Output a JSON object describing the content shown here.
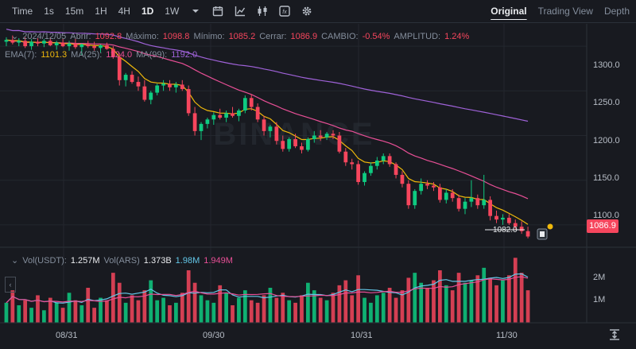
{
  "toolbar": {
    "intervals": [
      {
        "label": "Time",
        "active": false
      },
      {
        "label": "1s",
        "active": false
      },
      {
        "label": "15m",
        "active": false
      },
      {
        "label": "1H",
        "active": false
      },
      {
        "label": "4H",
        "active": false
      },
      {
        "label": "1D",
        "active": true
      },
      {
        "label": "1W",
        "active": false
      }
    ],
    "icons": [
      "chevron-down-icon",
      "calendar-icon",
      "indicator-icon",
      "candle-type-icon",
      "fx-icon",
      "gear-icon"
    ],
    "views": [
      {
        "label": "Original",
        "active": true
      },
      {
        "label": "Trading View",
        "active": false
      },
      {
        "label": "Depth",
        "active": false
      }
    ]
  },
  "ohlc": {
    "date": "2024/12/05",
    "open_label": "Abrir:",
    "open": "1092.8",
    "high_label": "Máximo:",
    "high": "1098.8",
    "low_label": "Mínimo:",
    "low": "1085.2",
    "close_label": "Cerrar:",
    "close": "1086.9",
    "change_label": "CAMBIO:",
    "change": "-0.54%",
    "amp_label": "AMPLITUD:",
    "amp": "1.24%"
  },
  "ma": {
    "ema_label": "EMA(7):",
    "ema_value": "1101.3",
    "ma25_label": "MA(25):",
    "ma25_value": "1124.0",
    "ma99_label": "MA(99):",
    "ma99_value": "1192.0",
    "colors": {
      "ema": "#f0b90b",
      "ma25": "#e84f96",
      "ma99": "#9f62d8"
    }
  },
  "price_axis": {
    "ticks": [
      "1300.0",
      "1250.0",
      "1200.0",
      "1150.0",
      "1100.0"
    ],
    "last_price": "1086.9",
    "low_marker": "1082.0"
  },
  "volume": {
    "label1": "Vol(USDT):",
    "value1": "1.257M",
    "label2": "Vol(ARS)",
    "value2": "1.373B",
    "value3": "1.98M",
    "value4": "1.949M",
    "ticks": [
      "2M",
      "1M"
    ]
  },
  "x_axis": {
    "dates": [
      "08/31",
      "09/30",
      "10/31",
      "11/30"
    ]
  },
  "watermark": "BINANCE",
  "colors": {
    "up": "#0ecb81",
    "down": "#f6465d",
    "bg": "#181a20",
    "grid": "#2b3139"
  },
  "chart_data": {
    "type": "candlestick",
    "interval": "1D",
    "ylim": [
      1075,
      1325
    ],
    "xlabels": [
      "08/31",
      "09/30",
      "10/31",
      "11/30"
    ],
    "candles": [
      [
        1305,
        1310,
        1300,
        1307
      ],
      [
        1307,
        1312,
        1302,
        1304
      ],
      [
        1304,
        1309,
        1300,
        1306
      ],
      [
        1306,
        1310,
        1298,
        1300
      ],
      [
        1300,
        1308,
        1296,
        1305
      ],
      [
        1305,
        1309,
        1300,
        1303
      ],
      [
        1303,
        1308,
        1299,
        1306
      ],
      [
        1306,
        1310,
        1300,
        1301
      ],
      [
        1301,
        1306,
        1296,
        1304
      ],
      [
        1304,
        1308,
        1299,
        1300
      ],
      [
        1300,
        1306,
        1295,
        1303
      ],
      [
        1303,
        1308,
        1297,
        1299
      ],
      [
        1299,
        1303,
        1290,
        1302
      ],
      [
        1302,
        1306,
        1298,
        1300
      ],
      [
        1300,
        1305,
        1295,
        1298
      ],
      [
        1298,
        1302,
        1293,
        1301
      ],
      [
        1301,
        1304,
        1296,
        1297
      ],
      [
        1297,
        1300,
        1286,
        1288
      ],
      [
        1288,
        1292,
        1256,
        1262
      ],
      [
        1262,
        1270,
        1255,
        1268
      ],
      [
        1268,
        1272,
        1258,
        1260
      ],
      [
        1260,
        1266,
        1250,
        1255
      ],
      [
        1255,
        1262,
        1238,
        1240
      ],
      [
        1240,
        1250,
        1235,
        1248
      ],
      [
        1248,
        1258,
        1245,
        1256
      ],
      [
        1256,
        1262,
        1250,
        1258
      ],
      [
        1258,
        1262,
        1250,
        1254
      ],
      [
        1254,
        1260,
        1248,
        1257
      ],
      [
        1257,
        1262,
        1250,
        1252
      ],
      [
        1252,
        1256,
        1222,
        1225
      ],
      [
        1225,
        1232,
        1200,
        1205
      ],
      [
        1205,
        1215,
        1195,
        1213
      ],
      [
        1213,
        1220,
        1208,
        1218
      ],
      [
        1218,
        1226,
        1212,
        1223
      ],
      [
        1223,
        1230,
        1218,
        1220
      ],
      [
        1220,
        1228,
        1215,
        1225
      ],
      [
        1225,
        1232,
        1220,
        1222
      ],
      [
        1222,
        1230,
        1216,
        1228
      ],
      [
        1228,
        1245,
        1225,
        1242
      ],
      [
        1242,
        1246,
        1228,
        1232
      ],
      [
        1232,
        1236,
        1215,
        1218
      ],
      [
        1218,
        1222,
        1200,
        1205
      ],
      [
        1205,
        1212,
        1198,
        1210
      ],
      [
        1210,
        1215,
        1190,
        1194
      ],
      [
        1194,
        1200,
        1182,
        1185
      ],
      [
        1185,
        1198,
        1182,
        1196
      ],
      [
        1196,
        1202,
        1186,
        1188
      ],
      [
        1188,
        1192,
        1180,
        1184
      ],
      [
        1184,
        1198,
        1182,
        1196
      ],
      [
        1196,
        1205,
        1192,
        1200
      ],
      [
        1200,
        1206,
        1194,
        1198
      ],
      [
        1198,
        1204,
        1195,
        1202
      ],
      [
        1202,
        1206,
        1196,
        1200
      ],
      [
        1200,
        1204,
        1180,
        1182
      ],
      [
        1182,
        1186,
        1166,
        1170
      ],
      [
        1170,
        1174,
        1162,
        1168
      ],
      [
        1168,
        1172,
        1145,
        1148
      ],
      [
        1148,
        1160,
        1144,
        1158
      ],
      [
        1158,
        1170,
        1155,
        1166
      ],
      [
        1166,
        1176,
        1162,
        1172
      ],
      [
        1172,
        1180,
        1168,
        1177
      ],
      [
        1177,
        1180,
        1165,
        1168
      ],
      [
        1168,
        1170,
        1152,
        1156
      ],
      [
        1156,
        1160,
        1142,
        1146
      ],
      [
        1146,
        1150,
        1118,
        1122
      ],
      [
        1122,
        1140,
        1118,
        1138
      ],
      [
        1138,
        1152,
        1134,
        1146
      ],
      [
        1146,
        1150,
        1140,
        1144
      ],
      [
        1144,
        1148,
        1138,
        1142
      ],
      [
        1142,
        1146,
        1125,
        1128
      ],
      [
        1128,
        1140,
        1124,
        1136
      ],
      [
        1136,
        1140,
        1126,
        1130
      ],
      [
        1130,
        1134,
        1115,
        1118
      ],
      [
        1118,
        1130,
        1112,
        1126
      ],
      [
        1126,
        1150,
        1120,
        1130
      ],
      [
        1130,
        1134,
        1118,
        1122
      ],
      [
        1122,
        1156,
        1118,
        1128
      ],
      [
        1128,
        1132,
        1105,
        1110
      ],
      [
        1110,
        1116,
        1102,
        1106
      ],
      [
        1106,
        1112,
        1100,
        1108
      ],
      [
        1108,
        1112,
        1100,
        1102
      ],
      [
        1102,
        1106,
        1095,
        1098
      ],
      [
        1098,
        1104,
        1090,
        1093
      ],
      [
        1093,
        1098,
        1085,
        1087
      ]
    ],
    "volumes": [
      0.8,
      1.3,
      0.7,
      0.9,
      0.6,
      1.1,
      0.5,
      1.0,
      0.8,
      0.6,
      1.2,
      0.9,
      0.7,
      1.4,
      0.6,
      1.0,
      0.9,
      2.0,
      1.6,
      0.8,
      1.1,
      0.9,
      1.3,
      1.7,
      0.9,
      1.0,
      0.7,
      0.8,
      1.2,
      2.1,
      1.6,
      1.1,
      0.9,
      0.8,
      1.5,
      1.2,
      0.7,
      1.0,
      1.3,
      0.9,
      0.8,
      1.1,
      1.4,
      1.0,
      1.2,
      0.9,
      0.8,
      1.1,
      1.6,
      1.3,
      1.0,
      0.9,
      1.2,
      1.5,
      1.7,
      1.1,
      1.9,
      1.0,
      0.8,
      1.1,
      1.2,
      1.4,
      1.0,
      1.3,
      1.8,
      2.0,
      1.6,
      1.4,
      1.7,
      2.1,
      1.5,
      1.3,
      2.0,
      1.6,
      1.7,
      1.9,
      2.2,
      1.8,
      1.5,
      1.7,
      1.9,
      2.6,
      2.0,
      1.3
    ],
    "vol_ylim": [
      0,
      2.8
    ]
  }
}
